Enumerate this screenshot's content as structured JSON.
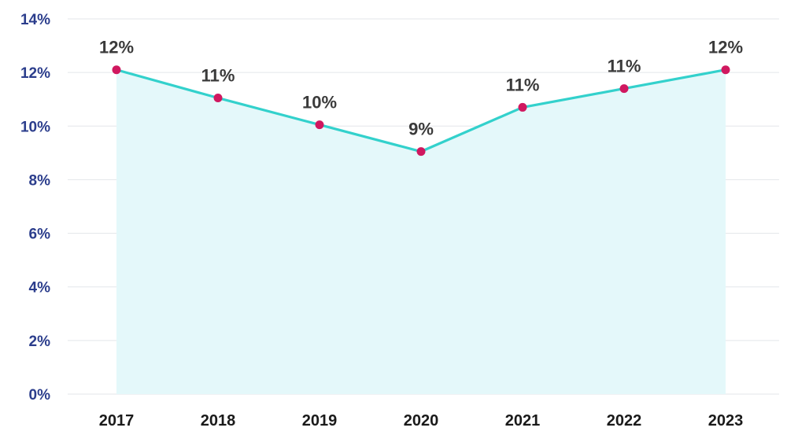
{
  "colors": {
    "line": "#33d1cc",
    "area": "#e4f8fa",
    "point": "#d0185f",
    "grid": "#e3e6ea",
    "y_tick_text": "#2b3d8c",
    "x_tick_text": "#1a1a1a",
    "data_label_text": "#3a3a3a"
  },
  "chart_data": {
    "type": "area",
    "title": "",
    "xlabel": "",
    "ylabel": "",
    "categories": [
      "2017",
      "2018",
      "2019",
      "2020",
      "2021",
      "2022",
      "2023"
    ],
    "series": [
      {
        "values": [
          12.1,
          11.05,
          10.05,
          9.05,
          10.7,
          11.4,
          12.1
        ],
        "labels": [
          "12%",
          "11%",
          "10%",
          "9%",
          "11%",
          "11%",
          "12%"
        ]
      }
    ],
    "ylim": [
      0,
      14
    ],
    "y_ticks": [
      0,
      2,
      4,
      6,
      8,
      10,
      12,
      14
    ],
    "y_tick_labels": [
      "0%",
      "2%",
      "4%",
      "6%",
      "8%",
      "10%",
      "12%",
      "14%"
    ],
    "grid": true,
    "legend": "none"
  }
}
